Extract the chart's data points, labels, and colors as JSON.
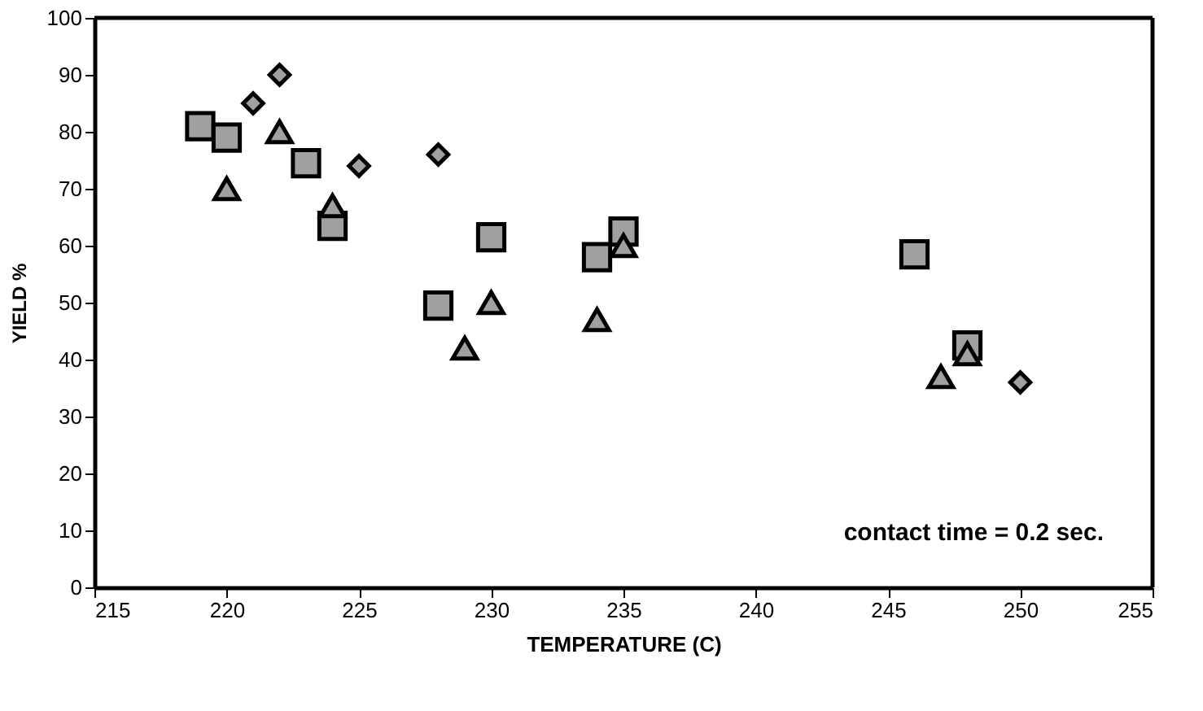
{
  "chart_data": {
    "type": "scatter",
    "xlabel": "TEMPERATURE (C)",
    "ylabel": "YIELD %",
    "xlim": [
      215,
      255
    ],
    "xticks": [
      215,
      220,
      225,
      230,
      235,
      240,
      245,
      250,
      255
    ],
    "ylim": [
      0,
      100
    ],
    "yticks": [
      0,
      10,
      20,
      30,
      40,
      50,
      60,
      70,
      80,
      90,
      100
    ],
    "grid": false,
    "annotations": [
      "contact time = 0.2 sec."
    ],
    "series": [
      {
        "marker": "square",
        "color": "#a0a0a0",
        "x": [
          219,
          220,
          223,
          224,
          228,
          230,
          234,
          235,
          246,
          248
        ],
        "values": [
          81,
          79,
          74.5,
          63.5,
          49.5,
          61.5,
          58,
          62.5,
          58.5,
          42.5
        ]
      },
      {
        "marker": "triangle",
        "color": "#a0a0a0",
        "x": [
          220,
          222,
          224,
          229,
          230,
          234,
          235,
          247,
          248
        ],
        "values": [
          70,
          80,
          67,
          42,
          50,
          47,
          60,
          37,
          41
        ]
      },
      {
        "marker": "diamond",
        "color": "#a0a0a0",
        "x": [
          221,
          222,
          225,
          228,
          250
        ],
        "values": [
          85,
          90,
          74,
          76,
          36
        ]
      }
    ]
  }
}
